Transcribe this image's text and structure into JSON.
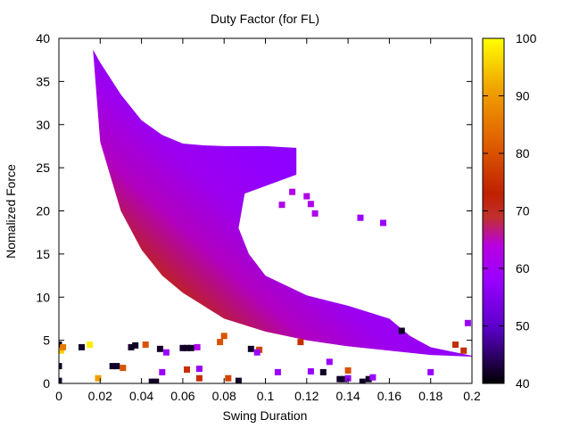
{
  "chart_data": {
    "type": "heatmap",
    "title": "Duty Factor (for FL)",
    "xlabel": "Swing Duration",
    "ylabel": "Nomalized Force",
    "xlim": [
      0,
      0.2
    ],
    "ylim": [
      0,
      40
    ],
    "x_ticks": [
      "0",
      "0.02",
      "0.04",
      "0.06",
      "0.08",
      "0.1",
      "0.12",
      "0.14",
      "0.16",
      "0.18",
      "0.2"
    ],
    "y_ticks": [
      "0",
      "5",
      "10",
      "15",
      "20",
      "25",
      "30",
      "35",
      "40"
    ],
    "colorbar": {
      "range": [
        40,
        100
      ],
      "ticks": [
        "40",
        "50",
        "60",
        "70",
        "80",
        "90",
        "100"
      ],
      "palette": [
        "#000000",
        "#5a00c8",
        "#9a00ff",
        "#c000c0",
        "#c02000",
        "#e06000",
        "#f0a000",
        "#ffff00"
      ]
    },
    "grid": false,
    "legend": "none",
    "band": {
      "description_points": {
        "upper_edge": [
          [
            0.0165,
            38.7
          ],
          [
            0.02,
            37.2
          ],
          [
            0.03,
            33.5
          ],
          [
            0.04,
            30.5
          ],
          [
            0.05,
            28.8
          ],
          [
            0.06,
            27.8
          ],
          [
            0.07,
            27.6
          ],
          [
            0.08,
            27.5
          ],
          [
            0.1,
            27.5
          ],
          [
            0.115,
            27.3
          ],
          [
            0.115,
            24.2
          ]
        ],
        "inner_edge": [
          [
            0.09,
            22
          ],
          [
            0.087,
            18
          ],
          [
            0.092,
            15
          ],
          [
            0.1,
            12.5
          ],
          [
            0.12,
            10.2
          ],
          [
            0.14,
            9
          ],
          [
            0.16,
            7.5
          ],
          [
            0.17,
            5.5
          ],
          [
            0.18,
            4.2
          ],
          [
            0.2,
            3.2
          ]
        ],
        "lower_edge": [
          [
            0.0165,
            38.7
          ],
          [
            0.02,
            28
          ],
          [
            0.03,
            20
          ],
          [
            0.04,
            15.5
          ],
          [
            0.05,
            12.5
          ],
          [
            0.06,
            10.5
          ],
          [
            0.07,
            9
          ],
          [
            0.08,
            7.5
          ],
          [
            0.1,
            6
          ],
          [
            0.12,
            5
          ],
          [
            0.14,
            4.3
          ],
          [
            0.16,
            3.8
          ],
          [
            0.18,
            3.3
          ],
          [
            0.2,
            3.1
          ]
        ]
      },
      "duty_factor_range": [
        60,
        72
      ]
    },
    "scatter_points": [
      {
        "x": 0.0,
        "y": 4.5,
        "v": 42
      },
      {
        "x": 0.0,
        "y": 2.0,
        "v": 42
      },
      {
        "x": 0.0,
        "y": 0.3,
        "v": 42
      },
      {
        "x": 0.001,
        "y": 3.8,
        "v": 95
      },
      {
        "x": 0.002,
        "y": 4.2,
        "v": 85
      },
      {
        "x": 0.011,
        "y": 4.2,
        "v": 42
      },
      {
        "x": 0.015,
        "y": 4.5,
        "v": 98
      },
      {
        "x": 0.019,
        "y": 0.6,
        "v": 90
      },
      {
        "x": 0.026,
        "y": 2.0,
        "v": 42
      },
      {
        "x": 0.028,
        "y": 2.0,
        "v": 42
      },
      {
        "x": 0.031,
        "y": 1.8,
        "v": 80
      },
      {
        "x": 0.035,
        "y": 4.2,
        "v": 42
      },
      {
        "x": 0.037,
        "y": 4.4,
        "v": 42
      },
      {
        "x": 0.042,
        "y": 4.5,
        "v": 80
      },
      {
        "x": 0.045,
        "y": 0.2,
        "v": 42
      },
      {
        "x": 0.047,
        "y": 0.2,
        "v": 42
      },
      {
        "x": 0.049,
        "y": 4.0,
        "v": 42
      },
      {
        "x": 0.05,
        "y": 1.3,
        "v": 58
      },
      {
        "x": 0.052,
        "y": 3.6,
        "v": 58
      },
      {
        "x": 0.06,
        "y": 4.1,
        "v": 42
      },
      {
        "x": 0.062,
        "y": 4.1,
        "v": 42
      },
      {
        "x": 0.064,
        "y": 4.1,
        "v": 42
      },
      {
        "x": 0.062,
        "y": 1.6,
        "v": 75
      },
      {
        "x": 0.067,
        "y": 4.2,
        "v": 62
      },
      {
        "x": 0.068,
        "y": 1.7,
        "v": 58
      },
      {
        "x": 0.068,
        "y": 0.6,
        "v": 75
      },
      {
        "x": 0.078,
        "y": 4.8,
        "v": 80
      },
      {
        "x": 0.08,
        "y": 5.5,
        "v": 80
      },
      {
        "x": 0.082,
        "y": 0.6,
        "v": 78
      },
      {
        "x": 0.087,
        "y": 0.3,
        "v": 42
      },
      {
        "x": 0.093,
        "y": 4.0,
        "v": 42
      },
      {
        "x": 0.097,
        "y": 3.9,
        "v": 78
      },
      {
        "x": 0.096,
        "y": 3.6,
        "v": 58
      },
      {
        "x": 0.106,
        "y": 1.3,
        "v": 58
      },
      {
        "x": 0.117,
        "y": 4.8,
        "v": 75
      },
      {
        "x": 0.122,
        "y": 1.4,
        "v": 58
      },
      {
        "x": 0.128,
        "y": 1.3,
        "v": 42
      },
      {
        "x": 0.131,
        "y": 2.5,
        "v": 58
      },
      {
        "x": 0.136,
        "y": 0.5,
        "v": 42
      },
      {
        "x": 0.138,
        "y": 0.5,
        "v": 42
      },
      {
        "x": 0.14,
        "y": 1.5,
        "v": 80
      },
      {
        "x": 0.14,
        "y": 0.6,
        "v": 58
      },
      {
        "x": 0.147,
        "y": 0.2,
        "v": 42
      },
      {
        "x": 0.15,
        "y": 0.5,
        "v": 42
      },
      {
        "x": 0.152,
        "y": 0.7,
        "v": 58
      },
      {
        "x": 0.166,
        "y": 6.1,
        "v": 42
      },
      {
        "x": 0.18,
        "y": 1.3,
        "v": 58
      },
      {
        "x": 0.146,
        "y": 19.2,
        "v": 58
      },
      {
        "x": 0.157,
        "y": 18.6,
        "v": 58
      },
      {
        "x": 0.12,
        "y": 21.7,
        "v": 62
      },
      {
        "x": 0.124,
        "y": 19.7,
        "v": 62
      },
      {
        "x": 0.122,
        "y": 20.8,
        "v": 62
      },
      {
        "x": 0.113,
        "y": 22.2,
        "v": 62
      },
      {
        "x": 0.108,
        "y": 20.7,
        "v": 62
      },
      {
        "x": 0.192,
        "y": 4.5,
        "v": 68
      },
      {
        "x": 0.196,
        "y": 3.8,
        "v": 68
      },
      {
        "x": 0.198,
        "y": 7.0,
        "v": 58
      }
    ]
  }
}
